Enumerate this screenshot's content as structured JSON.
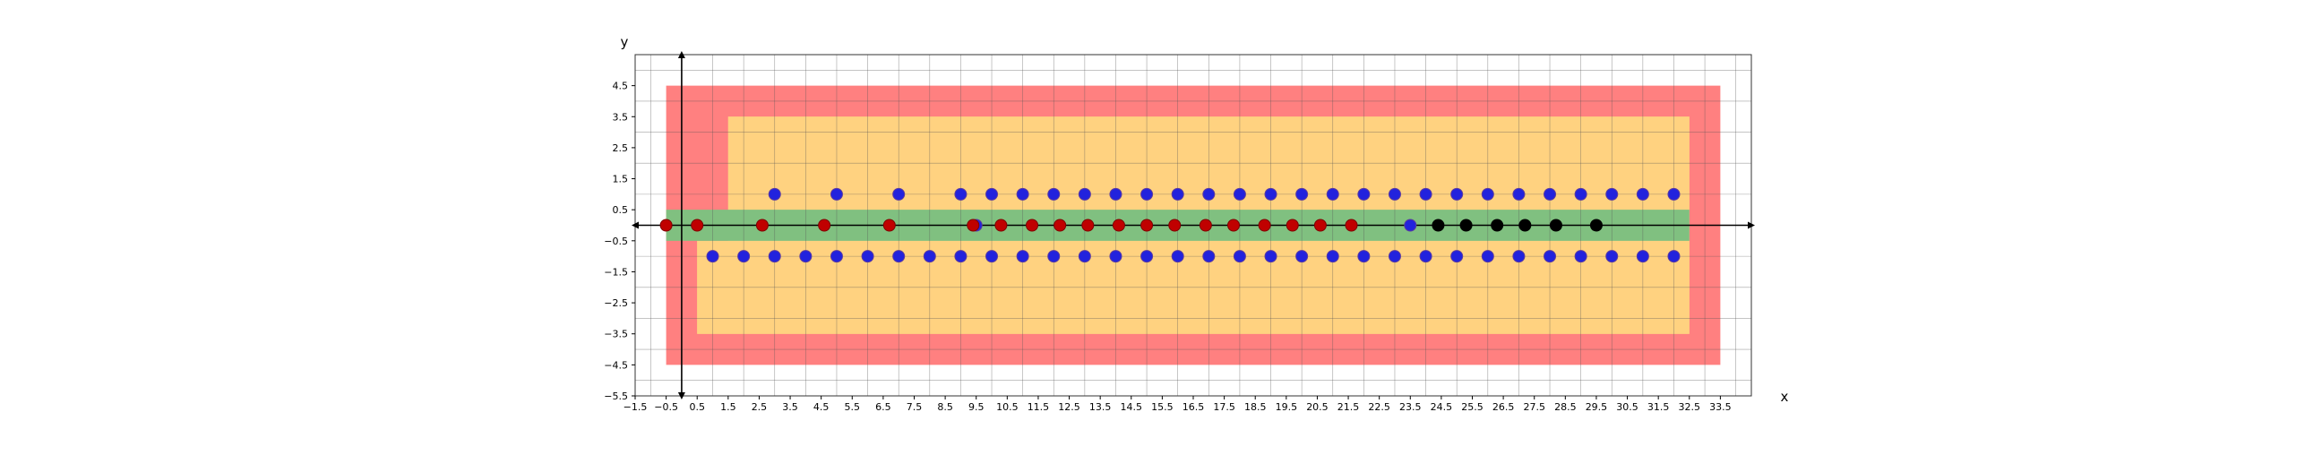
{
  "chart_data": {
    "type": "scatter",
    "title": "",
    "xlabel": "x",
    "ylabel": "y",
    "xlim": [
      -1.5,
      34.5
    ],
    "ylim": [
      -5.5,
      5.5
    ],
    "grid": true,
    "xticks": [
      -1.5,
      -0.5,
      0.5,
      1.5,
      2.5,
      3.5,
      4.5,
      5.5,
      6.5,
      7.5,
      8.5,
      9.5,
      10.5,
      11.5,
      12.5,
      13.5,
      14.5,
      15.5,
      16.5,
      17.5,
      18.5,
      19.5,
      20.5,
      21.5,
      22.5,
      23.5,
      24.5,
      25.5,
      26.5,
      27.5,
      28.5,
      29.5,
      30.5,
      31.5,
      32.5,
      33.5
    ],
    "xtick_labels": [
      "−1.5",
      "−0.5",
      "0.5",
      "1.5",
      "2.5",
      "3.5",
      "4.5",
      "5.5",
      "6.5",
      "7.5",
      "8.5",
      "9.5",
      "10.5",
      "11.5",
      "12.5",
      "13.5",
      "14.5",
      "15.5",
      "16.5",
      "17.5",
      "18.5",
      "19.5",
      "20.5",
      "21.5",
      "22.5",
      "23.5",
      "24.5",
      "25.5",
      "26.5",
      "27.5",
      "28.5",
      "29.5",
      "30.5",
      "31.5",
      "32.5",
      "33.5"
    ],
    "yticks": [
      -5.5,
      -4.5,
      -3.5,
      -2.5,
      -1.5,
      -0.5,
      0.5,
      1.5,
      2.5,
      3.5,
      4.5
    ],
    "ytick_labels": [
      "−5.5",
      "−4.5",
      "−3.5",
      "−2.5",
      "−1.5",
      "−0.5",
      "0.5",
      "1.5",
      "2.5",
      "3.5",
      "4.5"
    ],
    "regions": [
      {
        "color": "#ff8080",
        "polygon": [
          [
            -0.5,
            4.5
          ],
          [
            33.5,
            4.5
          ],
          [
            33.5,
            -4.5
          ],
          [
            -0.5,
            -4.5
          ]
        ]
      },
      {
        "color": "#ffd280",
        "polygon": [
          [
            1.5,
            3.5
          ],
          [
            32.5,
            3.5
          ],
          [
            32.5,
            -0.5
          ],
          [
            0.5,
            -0.5
          ],
          [
            0.5,
            -3.5
          ],
          [
            32.5,
            -3.5
          ],
          [
            32.5,
            0.5
          ],
          [
            1.5,
            0.5
          ]
        ]
      },
      {
        "color": "#ffd280",
        "polygon": [
          [
            1.5,
            3.5
          ],
          [
            32.5,
            3.5
          ],
          [
            32.5,
            -3.5
          ],
          [
            0.5,
            -3.5
          ],
          [
            0.5,
            -0.5
          ],
          [
            1.5,
            -0.5
          ]
        ]
      },
      {
        "color": "#80c080",
        "polygon": [
          [
            -0.5,
            0.5
          ],
          [
            32.5,
            0.5
          ],
          [
            32.5,
            -0.5
          ],
          [
            -0.5,
            -0.5
          ]
        ]
      }
    ],
    "series": [
      {
        "marker_color": "#2222dd",
        "edge_color": "#5a3aa0",
        "points": [
          [
            3,
            1
          ],
          [
            5,
            1
          ],
          [
            7,
            1
          ],
          [
            9,
            1
          ],
          [
            10,
            1
          ],
          [
            11,
            1
          ],
          [
            12,
            1
          ],
          [
            13,
            1
          ],
          [
            14,
            1
          ],
          [
            15,
            1
          ],
          [
            16,
            1
          ],
          [
            17,
            1
          ],
          [
            18,
            1
          ],
          [
            19,
            1
          ],
          [
            20,
            1
          ],
          [
            21,
            1
          ],
          [
            22,
            1
          ],
          [
            23,
            1
          ],
          [
            24,
            1
          ],
          [
            25,
            1
          ],
          [
            26,
            1
          ],
          [
            27,
            1
          ],
          [
            28,
            1
          ],
          [
            29,
            1
          ],
          [
            30,
            1
          ],
          [
            31,
            1
          ],
          [
            32,
            1
          ],
          [
            1,
            -1
          ],
          [
            2,
            -1
          ],
          [
            3,
            -1
          ],
          [
            4,
            -1
          ],
          [
            5,
            -1
          ],
          [
            6,
            -1
          ],
          [
            7,
            -1
          ],
          [
            8,
            -1
          ],
          [
            9,
            -1
          ],
          [
            10,
            -1
          ],
          [
            11,
            -1
          ],
          [
            12,
            -1
          ],
          [
            13,
            -1
          ],
          [
            14,
            -1
          ],
          [
            15,
            -1
          ],
          [
            16,
            -1
          ],
          [
            17,
            -1
          ],
          [
            18,
            -1
          ],
          [
            19,
            -1
          ],
          [
            20,
            -1
          ],
          [
            21,
            -1
          ],
          [
            22,
            -1
          ],
          [
            23,
            -1
          ],
          [
            24,
            -1
          ],
          [
            25,
            -1
          ],
          [
            26,
            -1
          ],
          [
            27,
            -1
          ],
          [
            28,
            -1
          ],
          [
            29,
            -1
          ],
          [
            30,
            -1
          ],
          [
            31,
            -1
          ],
          [
            32,
            -1
          ],
          [
            9.5,
            0
          ],
          [
            23.5,
            0
          ]
        ]
      },
      {
        "marker_color": "#c00000",
        "edge_color": "#800000",
        "points": [
          [
            -0.5,
            0
          ],
          [
            0.5,
            0
          ],
          [
            2.6,
            0
          ],
          [
            4.6,
            0
          ],
          [
            6.7,
            0
          ],
          [
            9.4,
            0
          ],
          [
            10.3,
            0
          ],
          [
            11.3,
            0
          ],
          [
            12.2,
            0
          ],
          [
            13.1,
            0
          ],
          [
            14.1,
            0
          ],
          [
            15,
            0
          ],
          [
            15.9,
            0
          ],
          [
            16.9,
            0
          ],
          [
            17.8,
            0
          ],
          [
            18.8,
            0
          ],
          [
            19.7,
            0
          ],
          [
            20.6,
            0
          ],
          [
            21.6,
            0
          ]
        ]
      },
      {
        "marker_color": "#000000",
        "edge_color": "#000000",
        "points": [
          [
            24.4,
            0
          ],
          [
            25.3,
            0
          ],
          [
            26.3,
            0
          ],
          [
            27.2,
            0
          ],
          [
            28.2,
            0
          ],
          [
            29.5,
            0
          ]
        ]
      }
    ]
  }
}
